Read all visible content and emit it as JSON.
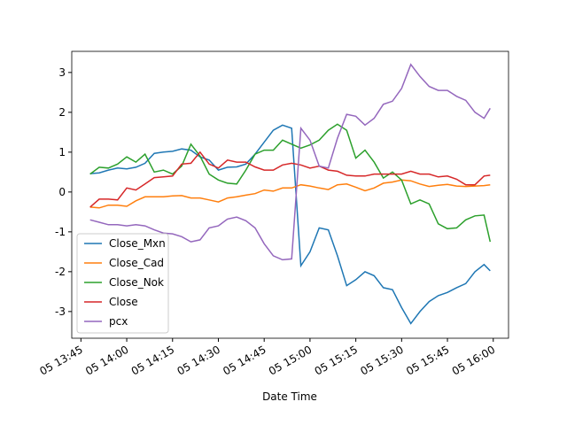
{
  "chart_data": {
    "type": "line",
    "xlabel": "Date Time",
    "x": [
      "05 13:48",
      "05 13:51",
      "05 13:54",
      "05 13:57",
      "05 14:00",
      "05 14:03",
      "05 14:06",
      "05 14:09",
      "05 14:12",
      "05 14:15",
      "05 14:18",
      "05 14:21",
      "05 14:24",
      "05 14:27",
      "05 14:30",
      "05 14:33",
      "05 14:36",
      "05 14:39",
      "05 14:42",
      "05 14:45",
      "05 14:48",
      "05 14:51",
      "05 14:54",
      "05 14:57",
      "05 15:00",
      "05 15:03",
      "05 15:06",
      "05 15:09",
      "05 15:12",
      "05 15:15",
      "05 15:18",
      "05 15:21",
      "05 15:24",
      "05 15:27",
      "05 15:30",
      "05 15:33",
      "05 15:36",
      "05 15:39",
      "05 15:42",
      "05 15:45",
      "05 15:48",
      "05 15:51",
      "05 15:54",
      "05 15:57",
      "05 15:59"
    ],
    "series": [
      {
        "name": "Close_Mxn",
        "color": "#1f77b4",
        "values": [
          0.46,
          0.48,
          0.55,
          0.6,
          0.58,
          0.62,
          0.72,
          0.97,
          1.0,
          1.02,
          1.08,
          1.05,
          0.88,
          0.8,
          0.55,
          0.62,
          0.63,
          0.7,
          0.95,
          1.25,
          1.55,
          1.68,
          1.6,
          -1.85,
          -1.5,
          -0.9,
          -0.95,
          -1.6,
          -2.35,
          -2.2,
          -2.0,
          -2.1,
          -2.4,
          -2.45,
          -2.9,
          -3.3,
          -3.0,
          -2.75,
          -2.6,
          -2.52,
          -2.4,
          -2.3,
          -2.0,
          -1.82,
          -1.98
        ]
      },
      {
        "name": "Close_Cad",
        "color": "#ff7f0e",
        "values": [
          -0.38,
          -0.4,
          -0.33,
          -0.33,
          -0.36,
          -0.22,
          -0.12,
          -0.12,
          -0.12,
          -0.1,
          -0.09,
          -0.15,
          -0.15,
          -0.2,
          -0.25,
          -0.15,
          -0.12,
          -0.08,
          -0.04,
          0.05,
          0.02,
          0.1,
          0.1,
          0.18,
          0.15,
          0.1,
          0.06,
          0.18,
          0.2,
          0.12,
          0.03,
          0.1,
          0.22,
          0.25,
          0.3,
          0.28,
          0.2,
          0.14,
          0.17,
          0.19,
          0.15,
          0.14,
          0.15,
          0.16,
          0.18
        ]
      },
      {
        "name": "Close_Nok",
        "color": "#2ca02c",
        "values": [
          0.45,
          0.62,
          0.6,
          0.7,
          0.88,
          0.75,
          0.95,
          0.5,
          0.55,
          0.45,
          0.65,
          1.2,
          0.9,
          0.45,
          0.3,
          0.22,
          0.2,
          0.55,
          0.95,
          1.05,
          1.05,
          1.3,
          1.2,
          1.1,
          1.18,
          1.3,
          1.55,
          1.7,
          1.55,
          0.85,
          1.05,
          0.75,
          0.35,
          0.5,
          0.3,
          -0.3,
          -0.2,
          -0.3,
          -0.8,
          -0.92,
          -0.9,
          -0.7,
          -0.6,
          -0.58,
          -1.25
        ]
      },
      {
        "name": "Close",
        "color": "#d62728",
        "values": [
          -0.38,
          -0.18,
          -0.18,
          -0.2,
          0.1,
          0.05,
          0.2,
          0.36,
          0.38,
          0.4,
          0.7,
          0.72,
          1.0,
          0.7,
          0.6,
          0.8,
          0.75,
          0.75,
          0.63,
          0.55,
          0.55,
          0.68,
          0.72,
          0.68,
          0.6,
          0.65,
          0.55,
          0.52,
          0.42,
          0.4,
          0.4,
          0.45,
          0.45,
          0.45,
          0.45,
          0.52,
          0.45,
          0.45,
          0.38,
          0.4,
          0.32,
          0.18,
          0.18,
          0.4,
          0.42
        ]
      },
      {
        "name": "pcx",
        "color": "#9467bd",
        "values": [
          -0.7,
          -0.76,
          -0.82,
          -0.82,
          -0.85,
          -0.82,
          -0.85,
          -0.95,
          -1.03,
          -1.05,
          -1.12,
          -1.25,
          -1.2,
          -0.9,
          -0.85,
          -0.68,
          -0.63,
          -0.72,
          -0.9,
          -1.3,
          -1.6,
          -1.7,
          -1.68,
          1.6,
          1.3,
          0.65,
          0.6,
          1.35,
          1.95,
          1.9,
          1.68,
          1.85,
          2.2,
          2.28,
          2.6,
          3.2,
          2.9,
          2.65,
          2.55,
          2.55,
          2.4,
          2.3,
          2.0,
          1.85,
          2.1
        ]
      }
    ],
    "xlim": [
      "05 13:42",
      "05 16:05"
    ],
    "xticks": [
      "05 13:45",
      "05 14:00",
      "05 14:15",
      "05 14:30",
      "05 14:45",
      "05 15:00",
      "05 15:15",
      "05 15:30",
      "05 15:45",
      "05 16:00"
    ],
    "ylim": [
      -3.67,
      3.53
    ],
    "yticks": [
      -3,
      -2,
      -1,
      0,
      1,
      2,
      3
    ],
    "legend": "lower left"
  }
}
